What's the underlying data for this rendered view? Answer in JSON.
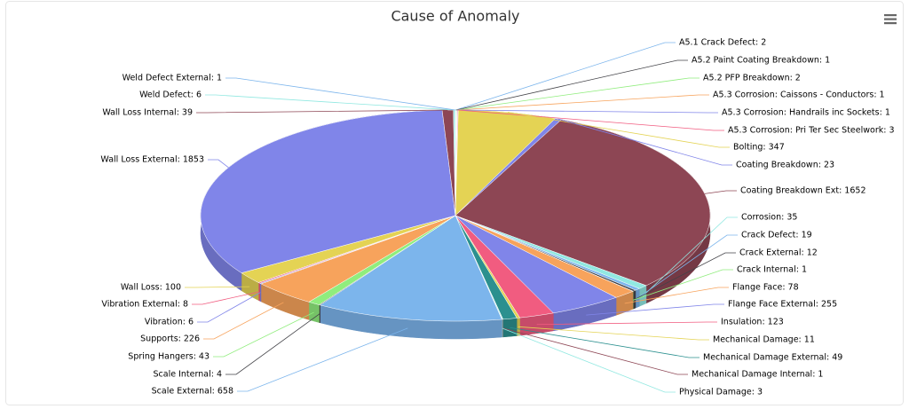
{
  "chart_data": {
    "type": "pie",
    "title": "Cause of Anomaly",
    "value_labels": [
      "A5.1 Crack Defect: 2",
      "A5.2 Paint Coating Breakdown: 1",
      "A5.2 PFP Breakdown: 2",
      "A5.3 Corrosion: Caissons - Conductors: 1",
      "A5.3 Corrosion: Handrails inc Sockets: 1",
      "A5.3 Corrosion: Pri Ter Sec Steelwork: 3",
      "Bolting: 347",
      "Coating Breakdown: 23",
      "Coating Breakdown Ext: 1652",
      "Corrosion: 35",
      "Crack Defect: 19",
      "Crack External: 12",
      "Crack Internal: 1",
      "Flange Face: 78",
      "Flange Face External: 255",
      "Insulation: 123",
      "Mechanical Damage: 11",
      "Mechanical Damage External: 49",
      "Mechanical Damage Internal: 1",
      "Physical Damage: 3",
      "Scale External: 658",
      "Scale Internal: 4",
      "Spring Hangers: 43",
      "Supports: 226",
      "Vibration: 6",
      "Vibration External: 8",
      "Wall Loss: 100",
      "Wall Loss External: 1853",
      "Wall Loss Internal: 39",
      "Weld Defect: 6",
      "Weld Defect External: 1"
    ],
    "values": [
      2,
      1,
      2,
      1,
      1,
      3,
      347,
      23,
      1652,
      35,
      19,
      12,
      1,
      78,
      255,
      123,
      11,
      49,
      1,
      3,
      658,
      4,
      43,
      226,
      6,
      8,
      100,
      1853,
      39,
      6,
      1
    ],
    "colors": [
      "#7cb5ec",
      "#434348",
      "#90ed7d",
      "#f7a35c",
      "#8085e9",
      "#f15c80",
      "#e4d354",
      "#8085e9",
      "#8d4654",
      "#91e8e1",
      "#7cb5ec",
      "#434348",
      "#90ed7d",
      "#f7a35c",
      "#8085e9",
      "#f15c80",
      "#e4d354",
      "#2b908f",
      "#8d4654",
      "#91e8e1",
      "#7cb5ec",
      "#434348",
      "#90ed7d",
      "#f7a35c",
      "#8085e9",
      "#f15c80",
      "#e4d354",
      "#8085e9",
      "#8d4654",
      "#91e8e1",
      "#7cb5ec"
    ]
  }
}
